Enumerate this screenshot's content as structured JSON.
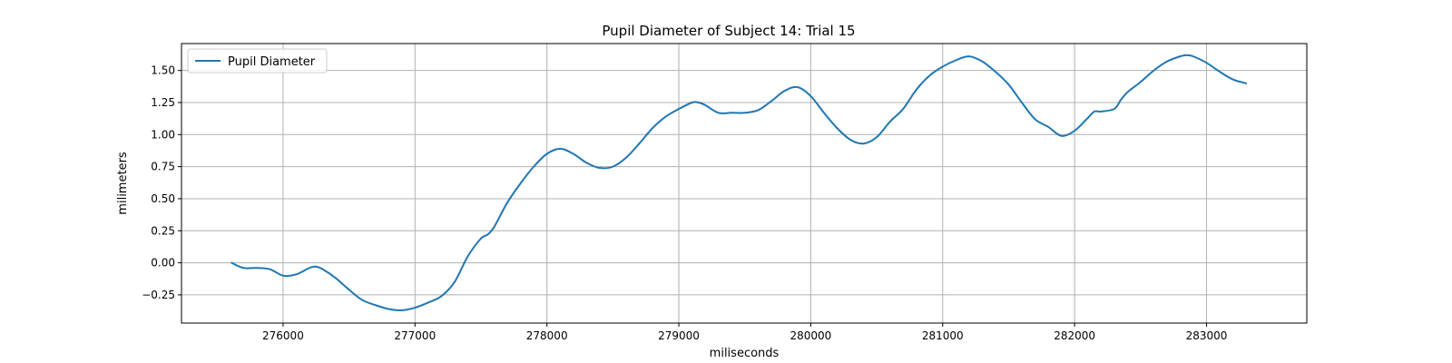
{
  "chart_data": {
    "type": "line",
    "title": "Pupil Diameter of Subject 14: Trial 15",
    "xlabel": "miliseconds",
    "ylabel": "milimeters",
    "xlim": [
      275230,
      283760
    ],
    "ylim": [
      -0.47,
      1.71
    ],
    "xticks": [
      276000,
      277000,
      278000,
      279000,
      280000,
      281000,
      282000,
      283000
    ],
    "yticks": [
      -0.25,
      0.0,
      0.25,
      0.5,
      0.75,
      1.0,
      1.25,
      1.5
    ],
    "xtick_labels": [
      "276000",
      "277000",
      "278000",
      "279000",
      "280000",
      "281000",
      "282000",
      "283000"
    ],
    "ytick_labels": [
      "−0.25",
      "0.00",
      "0.25",
      "0.50",
      "0.75",
      "1.00",
      "1.25",
      "1.50"
    ],
    "grid": true,
    "legend": {
      "position": "top-left",
      "entries": [
        "Pupil Diameter"
      ]
    },
    "series": [
      {
        "name": "Pupil Diameter",
        "color": "#1f77b4",
        "x": [
          275610,
          275700,
          275800,
          275900,
          276000,
          276100,
          276200,
          276250,
          276300,
          276400,
          276500,
          276600,
          276700,
          276800,
          276900,
          277000,
          277100,
          277200,
          277300,
          277400,
          277500,
          277550,
          277600,
          277700,
          277800,
          277900,
          278000,
          278100,
          278200,
          278300,
          278400,
          278500,
          278600,
          278700,
          278800,
          278900,
          279000,
          279100,
          279150,
          279200,
          279300,
          279400,
          279500,
          279600,
          279700,
          279800,
          279900,
          280000,
          280100,
          280200,
          280300,
          280400,
          280500,
          280600,
          280700,
          280800,
          280900,
          281000,
          281100,
          281200,
          281300,
          281400,
          281500,
          281600,
          281700,
          281800,
          281900,
          282000,
          282100,
          282150,
          282200,
          282300,
          282350,
          282400,
          282500,
          282600,
          282700,
          282800,
          282850,
          282900,
          283000,
          283100,
          283200,
          283300
        ],
        "values": [
          0.0,
          -0.04,
          -0.04,
          -0.05,
          -0.1,
          -0.09,
          -0.04,
          -0.03,
          -0.05,
          -0.12,
          -0.21,
          -0.29,
          -0.33,
          -0.36,
          -0.37,
          -0.35,
          -0.31,
          -0.26,
          -0.15,
          0.05,
          0.19,
          0.22,
          0.28,
          0.47,
          0.62,
          0.75,
          0.85,
          0.89,
          0.85,
          0.78,
          0.74,
          0.75,
          0.82,
          0.93,
          1.05,
          1.14,
          1.2,
          1.25,
          1.25,
          1.23,
          1.17,
          1.17,
          1.17,
          1.19,
          1.26,
          1.34,
          1.37,
          1.3,
          1.17,
          1.05,
          0.96,
          0.93,
          0.98,
          1.1,
          1.2,
          1.35,
          1.46,
          1.53,
          1.58,
          1.61,
          1.57,
          1.49,
          1.39,
          1.25,
          1.12,
          1.06,
          0.99,
          1.03,
          1.13,
          1.18,
          1.18,
          1.2,
          1.27,
          1.33,
          1.41,
          1.5,
          1.57,
          1.61,
          1.62,
          1.61,
          1.56,
          1.49,
          1.43,
          1.4
        ]
      }
    ]
  }
}
